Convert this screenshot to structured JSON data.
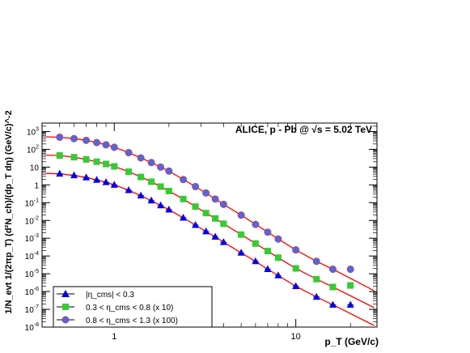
{
  "chart_data": {
    "type": "scatter",
    "title": "ALICE, p - Pb @ √s = 5.02 TeV",
    "xlabel": "p_T (GeV/c)",
    "ylabel": "1/N_evt 1/(2πp_T) (d²N_ch)/(dp_T dη) (GeV/c)^-2",
    "xscale": "log",
    "yscale": "log",
    "xlim": [
      0.4,
      28
    ],
    "ylim": [
      1e-08,
      3000
    ],
    "x_tick_labels": [
      "1",
      "10"
    ],
    "y_tick_labels": [
      "10^-8",
      "10^-7",
      "10^-6",
      "10^-5",
      "10^-4",
      "10^-3",
      "10^-2",
      "10^-1",
      "1",
      "10",
      "10^2",
      "10^3"
    ],
    "legend_position": "bottom-left",
    "fit_color": "#ff0000",
    "series": [
      {
        "name": "|η_cms| < 0.3",
        "marker": "triangle",
        "color": "#0000ee",
        "x": [
          0.5,
          0.6,
          0.7,
          0.8,
          0.9,
          1.0,
          1.2,
          1.4,
          1.6,
          1.8,
          2.0,
          2.4,
          2.8,
          3.2,
          3.6,
          4.0,
          5.0,
          6.0,
          7.0,
          8.0,
          10.0,
          13.0,
          16.0,
          20.0
        ],
        "y": [
          4.2,
          3.4,
          2.6,
          1.9,
          1.4,
          1.0,
          0.5,
          0.25,
          0.13,
          0.07,
          0.04,
          0.014,
          0.0055,
          0.0024,
          0.0012,
          0.0006,
          0.00015,
          5e-05,
          1.8e-05,
          8e-06,
          2e-06,
          5e-07,
          1.8e-07,
          1.8e-07
        ]
      },
      {
        "name": "0.3 < η_cms < 0.8 (x 10)",
        "marker": "square",
        "color": "#33cc33",
        "x": [
          0.5,
          0.6,
          0.7,
          0.8,
          0.9,
          1.0,
          1.2,
          1.4,
          1.6,
          1.8,
          2.0,
          2.4,
          2.8,
          3.2,
          3.6,
          4.0,
          5.0,
          6.0,
          7.0,
          8.0,
          10.0,
          13.0,
          16.0,
          20.0
        ],
        "y": [
          45,
          36,
          27,
          20,
          15,
          11,
          5.5,
          2.8,
          1.5,
          0.8,
          0.45,
          0.16,
          0.06,
          0.026,
          0.013,
          0.0065,
          0.0016,
          0.0005,
          0.00019,
          8e-05,
          2e-05,
          5e-06,
          1.8e-06,
          2.2e-06
        ]
      },
      {
        "name": "0.8 < η_cms < 1.3 (x 100)",
        "marker": "circle",
        "color": "#5566dd",
        "x": [
          0.5,
          0.6,
          0.7,
          0.8,
          0.9,
          1.0,
          1.2,
          1.4,
          1.6,
          1.8,
          2.0,
          2.4,
          2.8,
          3.2,
          3.6,
          4.0,
          5.0,
          6.0,
          7.0,
          8.0,
          10.0,
          13.0,
          16.0,
          20.0
        ],
        "y": [
          480,
          400,
          320,
          240,
          180,
          130,
          65,
          33,
          18,
          10,
          6,
          2,
          0.8,
          0.35,
          0.16,
          0.08,
          0.02,
          0.006,
          0.0022,
          0.0009,
          0.00022,
          5e-05,
          1.8e-05,
          1.8e-05
        ]
      }
    ]
  }
}
